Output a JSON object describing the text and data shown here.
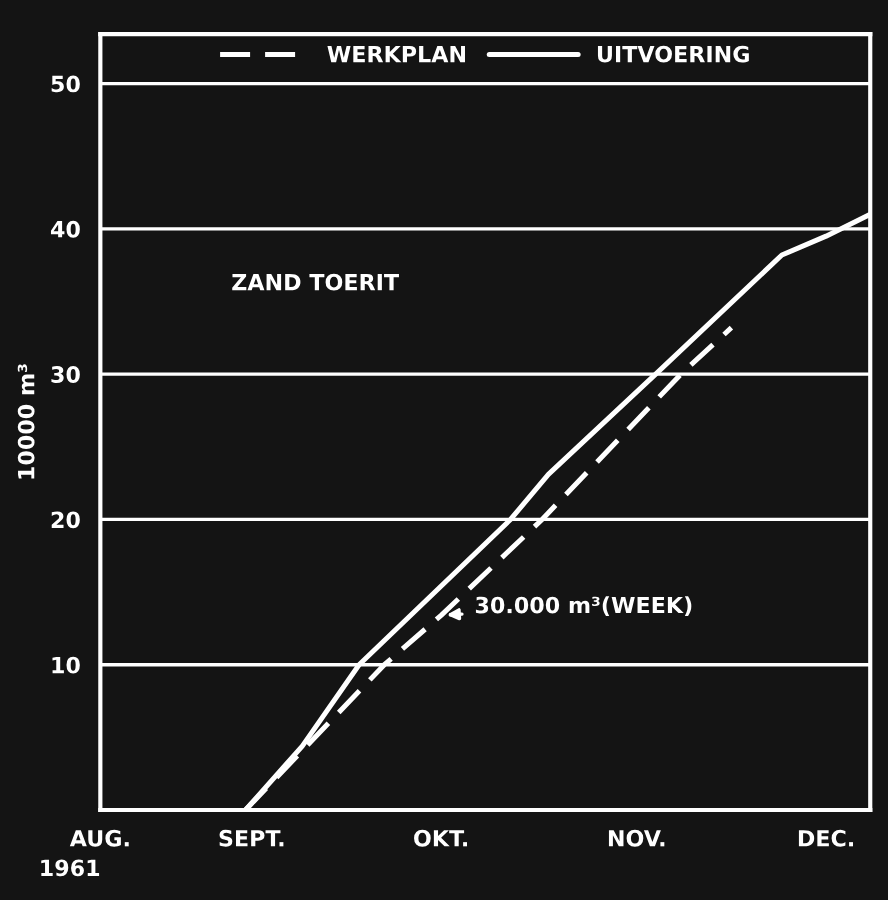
{
  "chart_data": {
    "type": "line",
    "ylabel": "10000 m³",
    "series": [
      {
        "name": "WERKPLAN",
        "color": "#ffffff",
        "line_style": "dashed",
        "x": [
          "1961-08-31",
          "1961-09-22",
          "1961-10-01",
          "1961-10-17",
          "1961-11-08",
          "1961-11-16"
        ],
        "values": [
          0,
          10,
          13.4,
          20,
          30,
          33.2
        ]
      },
      {
        "name": "UITVOERING",
        "color": "#ffffff",
        "line_style": "solid",
        "x": [
          "1961-08-31",
          "1961-09-09",
          "1961-09-18",
          "1961-10-12",
          "1961-10-18",
          "1961-11-04",
          "1961-11-24",
          "1961-12-01",
          "1961-12-08"
        ],
        "values": [
          0,
          4.4,
          10,
          20,
          23.1,
          30,
          38.2,
          39.5,
          41
        ]
      }
    ],
    "xlim": [
      "1961-08-08",
      "1961-12-08"
    ],
    "xticks": [
      {
        "value": "1961-08-08",
        "label": "AUG."
      },
      {
        "value": "1961-09-01",
        "label": "SEPT."
      },
      {
        "value": "1961-10-01",
        "label": "OKT."
      },
      {
        "value": "1961-11-01",
        "label": "NOV."
      },
      {
        "value": "1961-12-01",
        "label": "DEC."
      }
    ],
    "ylim": [
      0,
      53.4
    ],
    "yticks": [
      10,
      20,
      30,
      40,
      50
    ],
    "grid": "y",
    "legend": "top",
    "marker": "none",
    "annotations": [
      "ZAND TOERIT",
      "1961",
      {
        "text": "30.000 m³(WEEK)",
        "x": "1961-10-01",
        "y": 13.4
      }
    ]
  }
}
